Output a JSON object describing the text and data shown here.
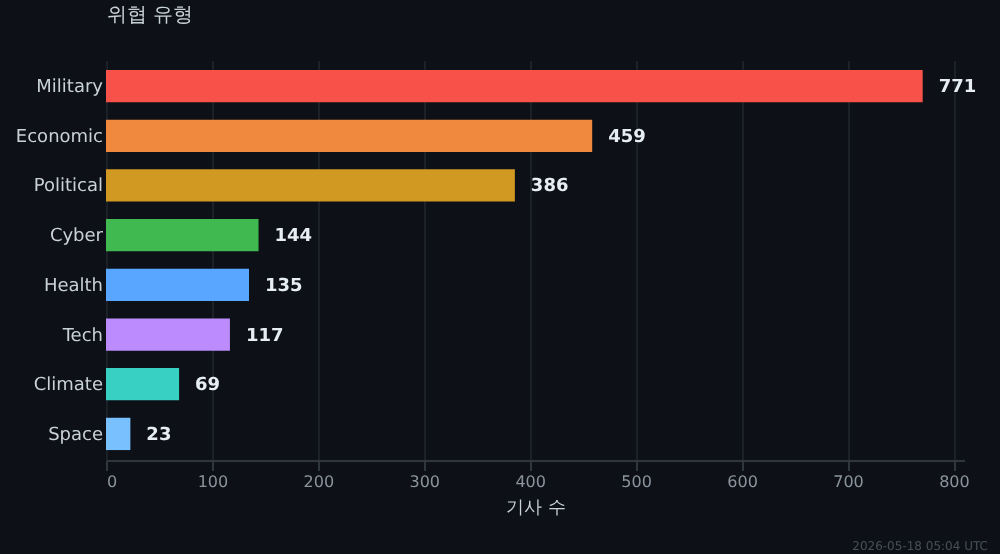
{
  "chart_data": {
    "type": "bar",
    "orientation": "horizontal",
    "ylabel": "위협 유형",
    "xlabel": "기사 수",
    "categories": [
      "Military",
      "Economic",
      "Political",
      "Cyber",
      "Health",
      "Tech",
      "Climate",
      "Space"
    ],
    "values": [
      771,
      459,
      386,
      144,
      135,
      117,
      69,
      23
    ],
    "colors": [
      "#f85149",
      "#f0883e",
      "#d29922",
      "#3fb950",
      "#58a6ff",
      "#bc8cff",
      "#39d0c4",
      "#79c0ff"
    ],
    "xlim": [
      0,
      810
    ],
    "xticks": [
      0,
      100,
      200,
      300,
      400,
      500,
      600,
      700,
      800
    ],
    "grid": "x",
    "data_labels": true,
    "annotations": [
      "2026-05-18 05:04 UTC"
    ]
  }
}
